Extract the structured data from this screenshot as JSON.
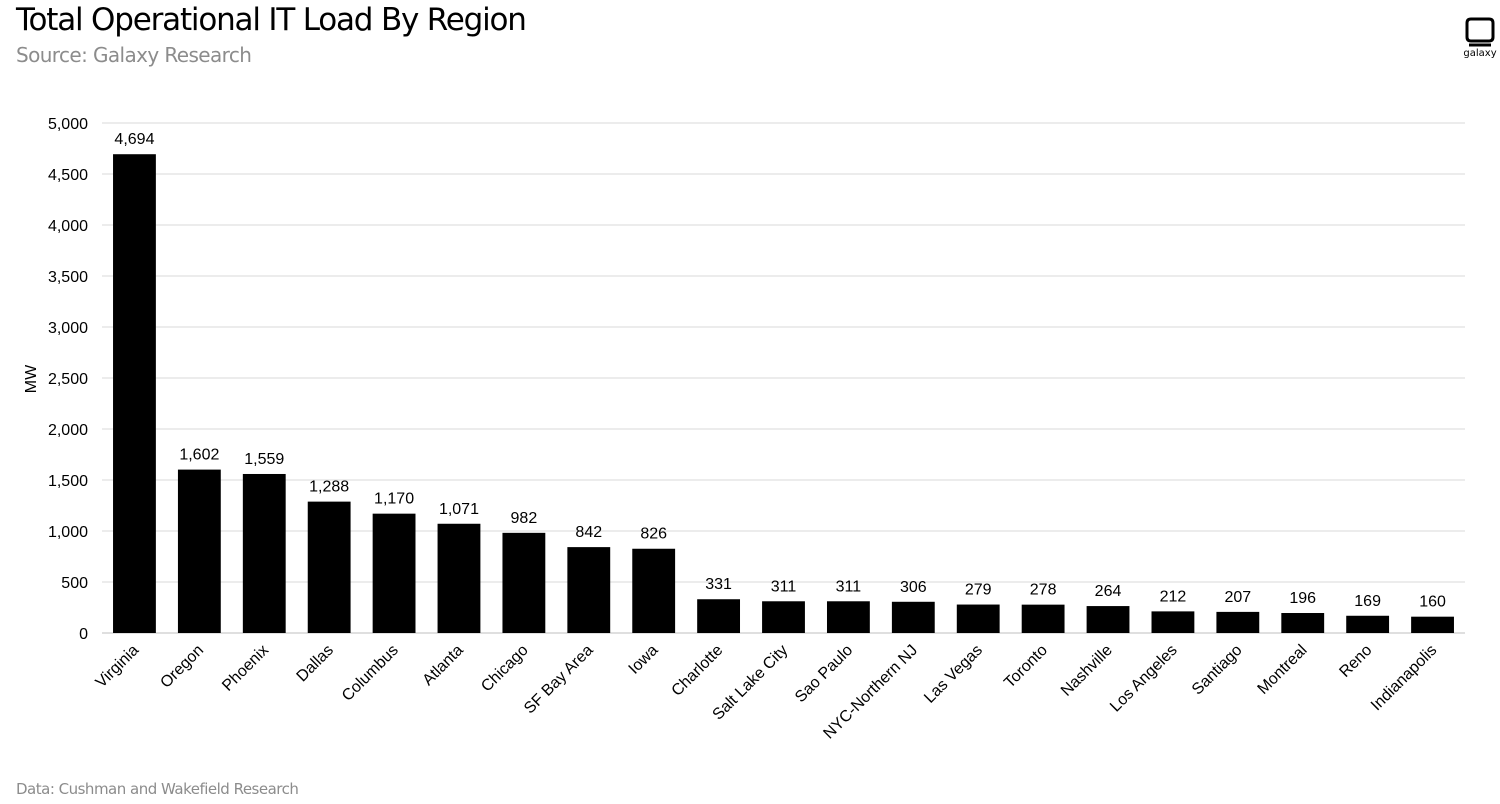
{
  "header": {
    "title": "Total Operational IT Load By Region",
    "subtitle": "Source: Galaxy Research"
  },
  "footer": {
    "note": "Data: Cushman and Wakefield Research"
  },
  "logo": {
    "icon": "galaxy-logo-icon",
    "wordmark": "galaxy"
  },
  "colors": {
    "bar": "#000000",
    "grid": "#d9d9d9",
    "muted": "#8c8c8c"
  },
  "chart_data": {
    "type": "bar",
    "title": "Total Operational IT Load By Region",
    "xlabel": "",
    "ylabel": "MW",
    "ylim": [
      0,
      5000
    ],
    "yticks": [
      0,
      500,
      1000,
      1500,
      2000,
      2500,
      3000,
      3500,
      4000,
      4500,
      5000
    ],
    "grid": true,
    "legend": "none",
    "categories": [
      "Virginia",
      "Oregon",
      "Phoenix",
      "Dallas",
      "Columbus",
      "Atlanta",
      "Chicago",
      "SF Bay Area",
      "Iowa",
      "Charlotte",
      "Salt Lake City",
      "Sao Paulo",
      "NYC-Northern NJ",
      "Las Vegas",
      "Toronto",
      "Nashville",
      "Los Angeles",
      "Santiago",
      "Montreal",
      "Reno",
      "Indianapolis"
    ],
    "values": [
      4694,
      1602,
      1559,
      1288,
      1170,
      1071,
      982,
      842,
      826,
      331,
      311,
      311,
      306,
      279,
      278,
      264,
      212,
      207,
      196,
      169,
      160
    ]
  }
}
